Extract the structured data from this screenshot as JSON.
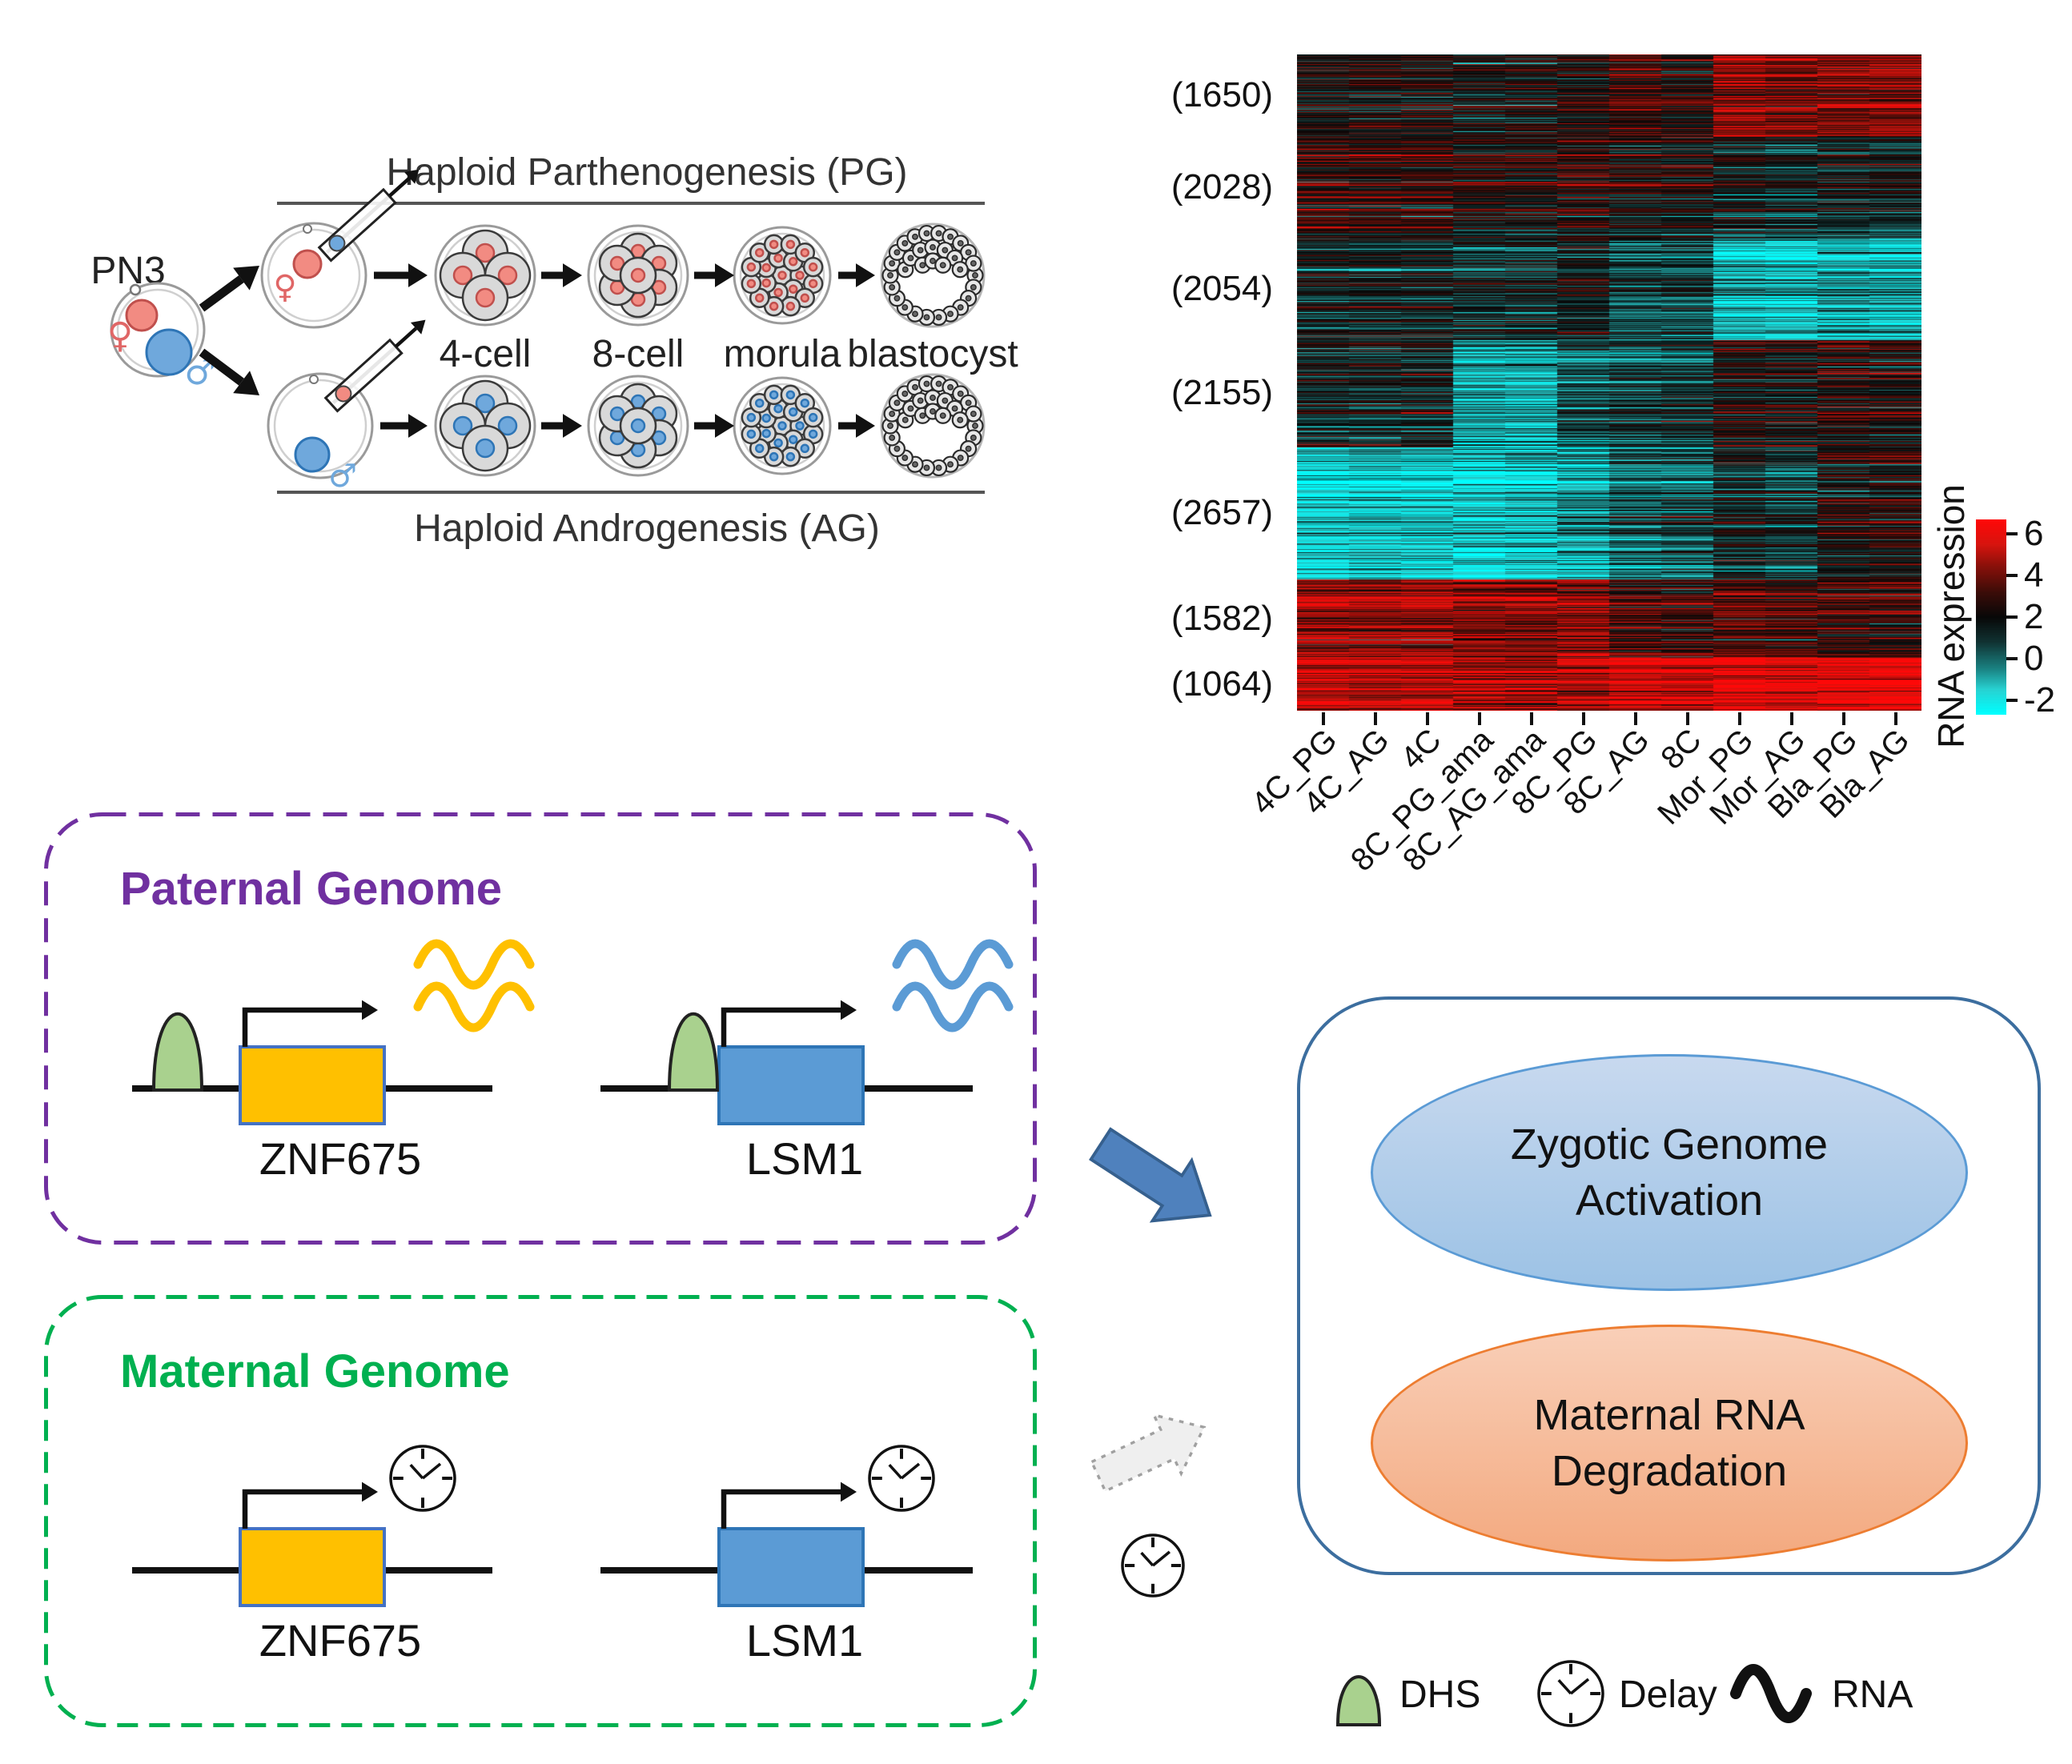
{
  "embryo_flow": {
    "pn3_label": "PN3",
    "pg_title": "Haploid Parthenogenesis (PG)",
    "ag_title": "Haploid Androgenesis (AG)",
    "stage_labels": [
      "4-cell",
      "8-cell",
      "morula",
      "blastocyst"
    ],
    "female_symbol": "♀",
    "male_symbol": "♂",
    "pg_color": "#f28b82",
    "ag_color": "#6fa8dc"
  },
  "chart_data": {
    "type": "heatmap",
    "columns": [
      "4C_PG",
      "4C_AG",
      "4C",
      "8C_PG_ama",
      "8C_AG_ama",
      "8C_PG",
      "8C_AG",
      "8C",
      "Mor_PG",
      "Mor_AG",
      "Bla_PG",
      "Bla_AG"
    ],
    "clusters": [
      {
        "label": "(1650)",
        "rows": 1650,
        "means": [
          2.1,
          2.1,
          2.1,
          1.9,
          2.0,
          2.2,
          3.1,
          2.5,
          4.4,
          4.0,
          4.0,
          4.2
        ]
      },
      {
        "label": "(2028)",
        "rows": 2028,
        "means": [
          2.8,
          2.7,
          2.7,
          2.6,
          2.5,
          2.7,
          2.2,
          2.1,
          1.6,
          1.2,
          1.4,
          1.3
        ]
      },
      {
        "label": "(2054)",
        "rows": 2054,
        "means": [
          1.4,
          1.3,
          1.4,
          1.1,
          1.2,
          1.5,
          0.5,
          0.6,
          -1.2,
          -1.4,
          -1.0,
          -1.2
        ]
      },
      {
        "label": "(2155)",
        "rows": 2155,
        "means": [
          1.6,
          1.5,
          1.6,
          -0.9,
          -1.0,
          0.2,
          0.6,
          0.8,
          2.3,
          2.1,
          2.4,
          2.3
        ]
      },
      {
        "label": "(2657)",
        "rows": 2657,
        "means": [
          -1.7,
          -1.5,
          -1.6,
          -1.8,
          -1.5,
          -0.9,
          0.1,
          0.3,
          1.4,
          0.8,
          2.0,
          2.2
        ]
      },
      {
        "label": "(1582)",
        "rows": 1582,
        "means": [
          4.6,
          4.5,
          4.6,
          4.4,
          4.3,
          4.5,
          3.2,
          3.0,
          3.4,
          3.2,
          3.0,
          2.9
        ]
      },
      {
        "label": "(1064)",
        "rows": 1064,
        "means": [
          5.2,
          5.1,
          5.2,
          5.0,
          4.9,
          5.1,
          5.8,
          5.6,
          6.0,
          5.8,
          6.0,
          6.2
        ]
      }
    ],
    "colorbar": {
      "title": "RNA expression",
      "ticks": [
        6,
        4,
        2,
        0,
        -2
      ],
      "vmin": -2.7,
      "vmax": 6.7
    },
    "colormap_stops": [
      {
        "v": -2.7,
        "rgb": [
          0,
          255,
          255
        ]
      },
      {
        "v": -1.5,
        "rgb": [
          40,
          210,
          210
        ]
      },
      {
        "v": -0.5,
        "rgb": [
          26,
          130,
          130
        ]
      },
      {
        "v": 0.8,
        "rgb": [
          16,
          50,
          50
        ]
      },
      {
        "v": 2.0,
        "rgb": [
          8,
          8,
          8
        ]
      },
      {
        "v": 3.2,
        "rgb": [
          60,
          12,
          8
        ]
      },
      {
        "v": 4.5,
        "rgb": [
          140,
          16,
          10
        ]
      },
      {
        "v": 5.5,
        "rgb": [
          215,
          20,
          14
        ]
      },
      {
        "v": 6.7,
        "rgb": [
          255,
          8,
          8
        ]
      }
    ]
  },
  "paternal": {
    "title": "Paternal Genome",
    "accent": "#7030A0",
    "dhs_color": "#A9D18E",
    "genes": [
      {
        "name": "ZNF675",
        "box_color": "#FFC000",
        "box_border": "#4472C4",
        "rna_color": "#FFC000"
      },
      {
        "name": "LSM1",
        "box_color": "#5B9BD5",
        "box_border": "#2E75B6",
        "rna_color": "#5B9BD5"
      }
    ]
  },
  "maternal": {
    "title": "Maternal Genome",
    "accent": "#00B050",
    "genes": [
      {
        "name": "ZNF675",
        "box_color": "#FFC000",
        "box_border": "#4472C4"
      },
      {
        "name": "LSM1",
        "box_color": "#5B9BD5",
        "box_border": "#2E75B6"
      }
    ]
  },
  "outcomes": {
    "zga": "Zygotic Genome Activation",
    "mrd": "Maternal RNA Degradation",
    "zga_border": "#5B9BD5",
    "mrd_border": "#ED7D31"
  },
  "legend": {
    "items": [
      {
        "icon": "dhs-icon",
        "label": "DHS"
      },
      {
        "icon": "clock-icon",
        "label": "Delay"
      },
      {
        "icon": "rna-wave-icon",
        "label": "RNA"
      }
    ]
  }
}
